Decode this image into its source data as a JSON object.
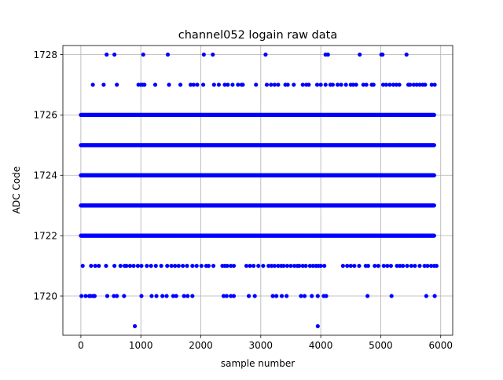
{
  "chart_data": {
    "type": "scatter",
    "title": "channel052 logain raw data",
    "xlabel": "sample number",
    "ylabel": "ADC Code",
    "xlim": [
      -300,
      6200
    ],
    "ylim": [
      1718.7,
      1728.3
    ],
    "xticks": [
      0,
      1000,
      2000,
      3000,
      4000,
      5000,
      6000
    ],
    "yticks": [
      1720,
      1722,
      1724,
      1726,
      1728
    ],
    "grid": true,
    "marker_color": "#0000ff",
    "sample_count": 5900,
    "dense_levels": [
      1722,
      1723,
      1724,
      1725,
      1726
    ],
    "sparse_points": {
      "1728": [
        430,
        560,
        1040,
        1450,
        2050,
        2200,
        3080,
        4080,
        4120,
        4650,
        5010,
        5030,
        5430
      ],
      "1727": [
        200,
        380,
        600,
        960,
        1000,
        1030,
        1060,
        1240,
        1470,
        1660,
        1830,
        1880,
        1940,
        2040,
        2220,
        2300,
        2400,
        2450,
        2530,
        2620,
        2680,
        2700,
        2920,
        3100,
        3170,
        3230,
        3290,
        3410,
        3450,
        3550,
        3700,
        3760,
        3800,
        3940,
        4000,
        4080,
        4160,
        4200,
        4280,
        4340,
        4420,
        4500,
        4540,
        4590,
        4710,
        4760,
        4850,
        4880,
        5040,
        5090,
        5150,
        5210,
        5260,
        5310,
        5460,
        5490,
        5550,
        5600,
        5650,
        5700,
        5740,
        5850,
        5900
      ],
      "1721": [
        30,
        170,
        240,
        300,
        420,
        560,
        660,
        730,
        760,
        820,
        880,
        950,
        1010,
        1100,
        1170,
        1250,
        1340,
        1440,
        1510,
        1570,
        1630,
        1700,
        1770,
        1860,
        1930,
        2010,
        2090,
        2130,
        2210,
        2360,
        2400,
        2440,
        2500,
        2550,
        2760,
        2820,
        2880,
        2960,
        3040,
        3130,
        3180,
        3230,
        3290,
        3340,
        3380,
        3440,
        3500,
        3560,
        3610,
        3640,
        3700,
        3750,
        3820,
        3870,
        3920,
        3960,
        4000,
        4060,
        4370,
        4440,
        4500,
        4560,
        4640,
        4750,
        4790,
        4900,
        4960,
        5050,
        5110,
        5170,
        5270,
        5320,
        5370,
        5440,
        5510,
        5570,
        5650,
        5730,
        5780,
        5840,
        5890,
        5930
      ],
      "1720": [
        10,
        80,
        140,
        160,
        200,
        230,
        440,
        550,
        600,
        720,
        1010,
        1180,
        1260,
        1360,
        1430,
        1540,
        1590,
        1720,
        1780,
        1860,
        2380,
        2430,
        2500,
        2550,
        2800,
        2900,
        3200,
        3260,
        3350,
        3430,
        3670,
        3730,
        3850,
        3950,
        4050,
        4090,
        4780,
        5180,
        5760,
        5900
      ],
      "1719": [
        900,
        3950
      ]
    }
  }
}
